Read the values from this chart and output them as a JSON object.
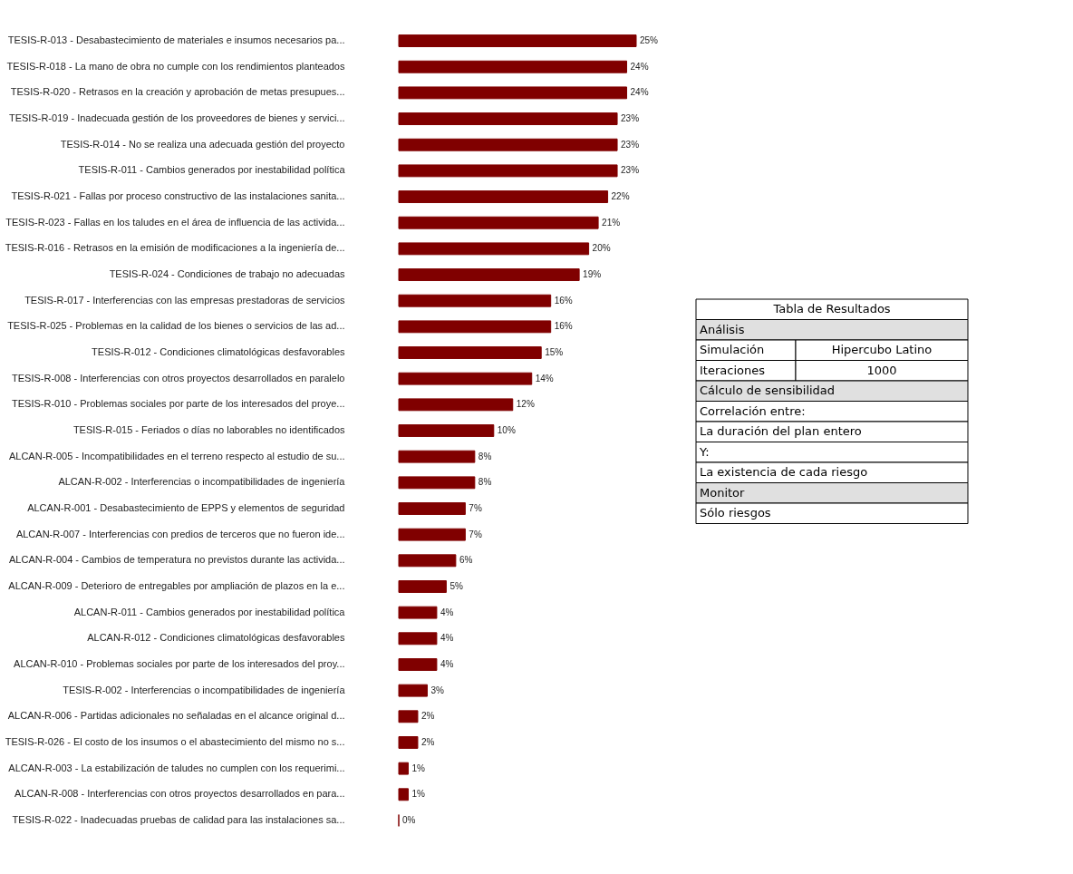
{
  "chart_data": [
    {
      "type": "bar",
      "orientation": "horizontal",
      "categories": [
        "TESIS-R-013 - Desabastecimiento de materiales e insumos necesarios pa...",
        "TESIS-R-018 - La mano de obra no cumple con los rendimientos planteados",
        "TESIS-R-020 - Retrasos en la creación y aprobación de metas presupues...",
        "TESIS-R-019 - Inadecuada gestión de los proveedores de bienes y servici...",
        "TESIS-R-014 - No se realiza una adecuada gestión del proyecto",
        "TESIS-R-011 - Cambios generados por inestabilidad política",
        "TESIS-R-021 - Fallas por proceso constructivo de las instalaciones sanita...",
        "TESIS-R-023 - Fallas en los taludes en el área de influencia de las activida...",
        "TESIS-R-016 - Retrasos en la emisión de modificaciones a la ingeniería de...",
        "TESIS-R-024 - Condiciones de trabajo no adecuadas",
        "TESIS-R-017 - Interferencias con las empresas prestadoras de servicios",
        "TESIS-R-025 - Problemas en la calidad de los bienes o servicios de las ad...",
        "TESIS-R-012 - Condiciones climatológicas desfavorables",
        "TESIS-R-008 - Interferencias con otros proyectos desarrollados en paralelo",
        "TESIS-R-010 - Problemas sociales por parte de los interesados del proye...",
        "TESIS-R-015 - Feriados o días no laborables no identificados",
        "ALCAN-R-005 - Incompatibilidades en el terreno respecto al estudio de su...",
        "ALCAN-R-002 - Interferencias o incompatibilidades de ingeniería",
        "ALCAN-R-001 - Desabastecimiento de EPPS y elementos de seguridad",
        "ALCAN-R-007 - Interferencias con predios de terceros que no fueron ide...",
        "ALCAN-R-004 - Cambios de temperatura no previstos durante las activida...",
        "ALCAN-R-009 - Deterioro de entregables por ampliación de plazos en la e...",
        "ALCAN-R-011 - Cambios generados por inestabilidad política",
        "ALCAN-R-012 - Condiciones climatológicas desfavorables",
        "ALCAN-R-010 - Problemas sociales por parte de los interesados del proy...",
        "TESIS-R-002 - Interferencias o incompatibilidades de ingeniería",
        "ALCAN-R-006 - Partidas adicionales no señaladas en el alcance original d...",
        "TESIS-R-026 - El costo de los insumos o el abastecimiento del mismo no s...",
        "ALCAN-R-003 - La estabilización de taludes no cumplen con los requerimi...",
        "ALCAN-R-008 - Interferencias con otros proyectos desarrollados en para...",
        "TESIS-R-022 - Inadecuadas pruebas de calidad para las instalaciones sa..."
      ],
      "values": [
        25,
        24,
        24,
        23,
        23,
        23,
        22,
        21,
        20,
        19,
        16,
        16,
        15,
        14,
        12,
        10,
        8,
        8,
        7,
        7,
        6,
        5,
        4,
        4,
        4,
        3,
        2,
        2,
        1,
        1,
        0
      ],
      "value_labels": [
        "25%",
        "24%",
        "24%",
        "23%",
        "23%",
        "23%",
        "22%",
        "21%",
        "20%",
        "19%",
        "16%",
        "16%",
        "15%",
        "14%",
        "12%",
        "10%",
        "8%",
        "8%",
        "7%",
        "7%",
        "6%",
        "5%",
        "4%",
        "4%",
        "4%",
        "3%",
        "2%",
        "2%",
        "1%",
        "1%",
        "0%"
      ],
      "color": "#800000"
    },
    {
      "type": "other",
      "annotations": [
        "Tabla de Resultados",
        "Análisis",
        "Simulación",
        "Hipercubo Latino",
        "Iteraciones",
        "1000",
        "Cálculo de sensibilidad",
        "Correlación entre:",
        "La duración del plan entero",
        "Y:",
        "La existencia de cada riesgo",
        "Monitor",
        "Sólo riesgos"
      ]
    }
  ]
}
